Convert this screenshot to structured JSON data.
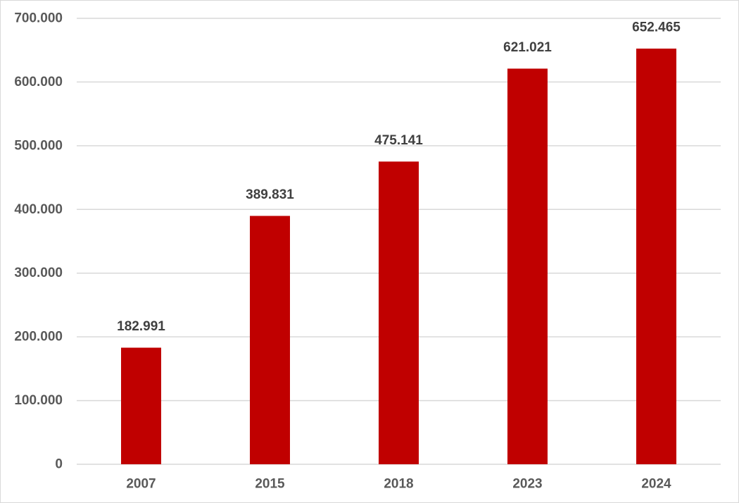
{
  "chart_data": {
    "type": "bar",
    "title": "",
    "xlabel": "",
    "ylabel": "",
    "categories": [
      "2007",
      "2015",
      "2018",
      "2023",
      "2024"
    ],
    "values": [
      182991,
      389831,
      475141,
      621021,
      652465
    ],
    "data_labels": [
      "182.991",
      "389.831",
      "475.141",
      "621.021",
      "652.465"
    ],
    "ylim": [
      0,
      700000
    ],
    "yticks": [
      0,
      100000,
      200000,
      300000,
      400000,
      500000,
      600000,
      700000
    ],
    "ytick_labels": [
      "0",
      "100.000",
      "200.000",
      "300.000",
      "400.000",
      "500.000",
      "600.000",
      "700.000"
    ],
    "grid": true,
    "legend": "none",
    "colors": {
      "bar": "#c00000",
      "grid": "#d9d9d9",
      "axis_text": "#595959",
      "label_text": "#404040"
    }
  }
}
